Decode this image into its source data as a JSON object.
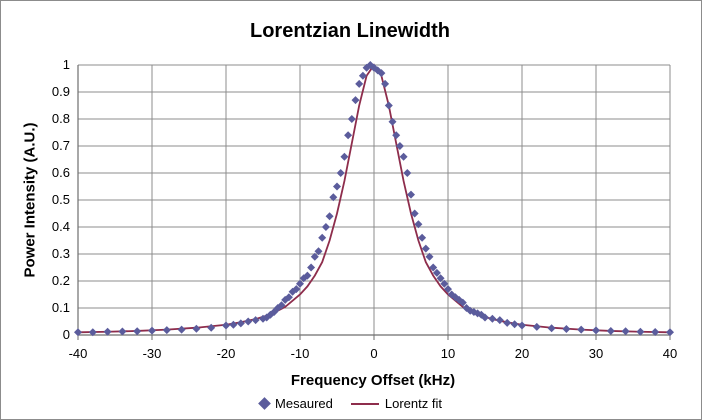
{
  "chart_data": {
    "type": "scatter",
    "title": "Lorentzian Linewidth",
    "xlabel": "Frequency Offset (kHz)",
    "ylabel": "Power Intensity (A.U.)",
    "xlim": [
      -40,
      40
    ],
    "ylim": [
      0,
      1
    ],
    "x_ticks": [
      "-40",
      "-30",
      "-20",
      "-10",
      "0",
      "10",
      "20",
      "30",
      "40"
    ],
    "y_ticks": [
      "0",
      "0.1",
      "0.2",
      "0.3",
      "0.4",
      "0.5",
      "0.6",
      "0.7",
      "0.8",
      "0.9",
      "1"
    ],
    "grid": true,
    "legend_position": "bottom",
    "series": [
      {
        "name": "Mesaured",
        "kind": "scatter",
        "marker": "diamond",
        "color": "#5b5c9c",
        "x": [
          -40,
          -38,
          -36,
          -34,
          -32,
          -30,
          -28,
          -26,
          -24,
          -22,
          -20,
          -19,
          -18,
          -17,
          -16,
          -15,
          -14.5,
          -14,
          -13.5,
          -13,
          -12.5,
          -12,
          -11.5,
          -11,
          -10.5,
          -10,
          -9.5,
          -9,
          -8.5,
          -8,
          -7.5,
          -7,
          -6.5,
          -6,
          -5.5,
          -5,
          -4.5,
          -4,
          -3.5,
          -3,
          -2.5,
          -2,
          -1.5,
          -1,
          -0.5,
          0,
          0.5,
          1,
          1.5,
          2,
          2.5,
          3,
          3.5,
          4,
          4.5,
          5,
          5.5,
          6,
          6.5,
          7,
          7.5,
          8,
          8.5,
          9,
          9.5,
          10,
          10.5,
          11,
          11.5,
          12,
          12.5,
          13,
          13.5,
          14,
          14.5,
          15,
          16,
          17,
          18,
          19,
          20,
          22,
          24,
          26,
          28,
          30,
          32,
          34,
          36,
          38,
          40
        ],
        "y": [
          0.01,
          0.01,
          0.012,
          0.013,
          0.014,
          0.016,
          0.018,
          0.02,
          0.023,
          0.027,
          0.035,
          0.038,
          0.043,
          0.05,
          0.055,
          0.06,
          0.065,
          0.075,
          0.085,
          0.1,
          0.11,
          0.13,
          0.14,
          0.16,
          0.17,
          0.19,
          0.21,
          0.22,
          0.25,
          0.29,
          0.31,
          0.36,
          0.4,
          0.44,
          0.51,
          0.55,
          0.6,
          0.66,
          0.74,
          0.8,
          0.87,
          0.93,
          0.96,
          0.99,
          1.0,
          0.99,
          0.98,
          0.97,
          0.93,
          0.85,
          0.79,
          0.74,
          0.7,
          0.66,
          0.6,
          0.52,
          0.45,
          0.41,
          0.36,
          0.32,
          0.29,
          0.25,
          0.23,
          0.21,
          0.19,
          0.17,
          0.15,
          0.14,
          0.13,
          0.12,
          0.1,
          0.09,
          0.085,
          0.08,
          0.075,
          0.065,
          0.06,
          0.055,
          0.045,
          0.04,
          0.035,
          0.03,
          0.025,
          0.022,
          0.02,
          0.017,
          0.015,
          0.014,
          0.012,
          0.011,
          0.01
        ]
      },
      {
        "name": "Lorentz fit",
        "kind": "line",
        "color": "#8e2d4c",
        "x": [
          -40,
          -36,
          -32,
          -28,
          -24,
          -20,
          -18,
          -16,
          -14,
          -12,
          -10,
          -9,
          -8,
          -7,
          -6,
          -5,
          -4,
          -3,
          -2,
          -1,
          0,
          1,
          2,
          3,
          4,
          5,
          6,
          7,
          8,
          9,
          10,
          12,
          14,
          16,
          18,
          20,
          24,
          28,
          32,
          36,
          40
        ],
        "y": [
          0.01,
          0.012,
          0.015,
          0.02,
          0.027,
          0.038,
          0.047,
          0.059,
          0.076,
          0.104,
          0.15,
          0.18,
          0.22,
          0.27,
          0.35,
          0.45,
          0.57,
          0.71,
          0.85,
          0.96,
          1.0,
          0.96,
          0.85,
          0.71,
          0.57,
          0.45,
          0.35,
          0.27,
          0.22,
          0.18,
          0.15,
          0.104,
          0.076,
          0.059,
          0.047,
          0.038,
          0.027,
          0.02,
          0.015,
          0.012,
          0.01
        ]
      }
    ]
  }
}
